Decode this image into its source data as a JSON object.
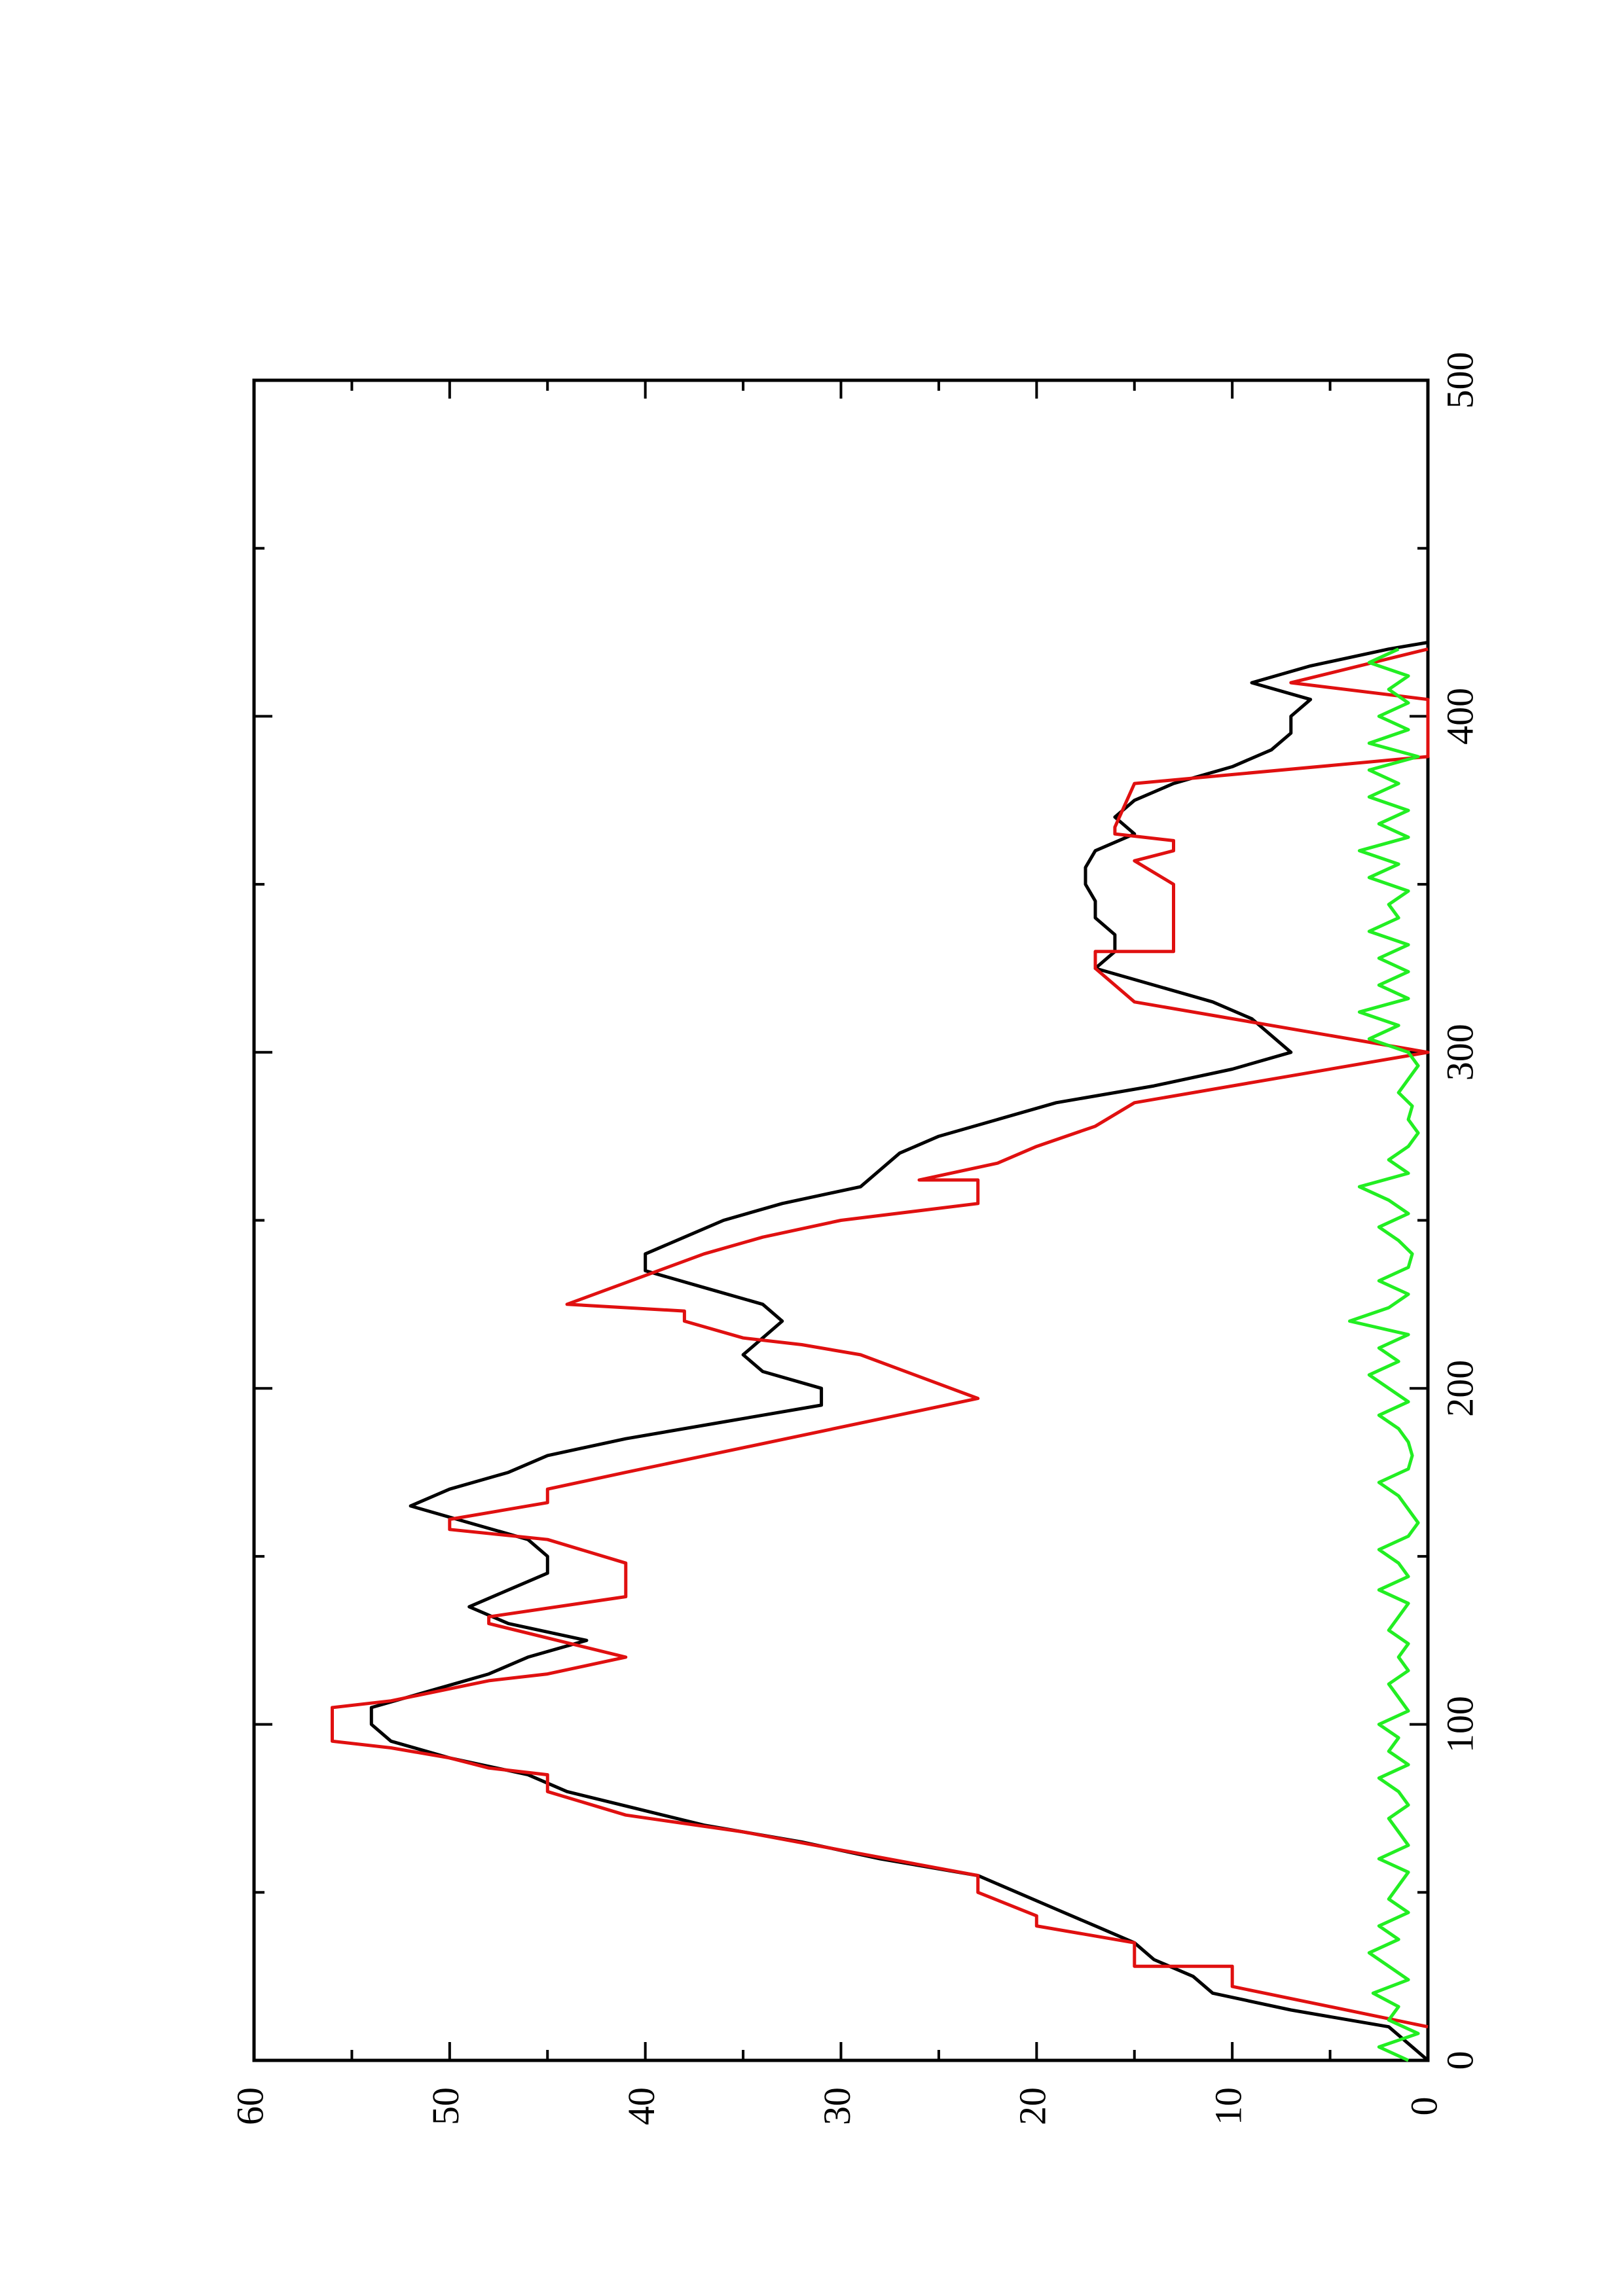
{
  "chart_data": {
    "type": "line",
    "xlim": [
      0,
      500
    ],
    "xticks": [
      0,
      100,
      200,
      300,
      400,
      500
    ],
    "xminorticks": [
      50,
      150,
      250,
      350,
      450
    ],
    "ylim": [
      0,
      60
    ],
    "yticks": [
      0,
      10,
      20,
      30,
      40,
      50,
      60
    ],
    "yminorticks": [
      5,
      15,
      25,
      35,
      45,
      55
    ],
    "rotated": true,
    "series": [
      {
        "color": "#000000",
        "x": [
          0,
          5,
          10,
          15,
          20,
          25,
          30,
          35,
          40,
          45,
          50,
          55,
          60,
          65,
          70,
          75,
          80,
          85,
          90,
          95,
          100,
          105,
          110,
          115,
          120,
          125,
          130,
          135,
          140,
          145,
          150,
          155,
          160,
          165,
          170,
          175,
          180,
          185,
          190,
          195,
          200,
          205,
          210,
          215,
          220,
          225,
          230,
          235,
          240,
          245,
          250,
          255,
          260,
          265,
          270,
          275,
          280,
          285,
          290,
          295,
          300,
          305,
          310,
          315,
          320,
          325,
          330,
          335,
          340,
          345,
          350,
          355,
          360,
          365,
          370,
          375,
          380,
          385,
          390,
          395,
          400,
          405,
          410,
          415,
          420,
          422
        ],
        "values": [
          0,
          1,
          2,
          7,
          11,
          12,
          14,
          15,
          17,
          19,
          21,
          23,
          28,
          32,
          37,
          40.5,
          44,
          46,
          50,
          53,
          54,
          54,
          51,
          48,
          46,
          43,
          47,
          49,
          47,
          45,
          45,
          46,
          49,
          52,
          50,
          47,
          45,
          41,
          36,
          31,
          31,
          34,
          35,
          34,
          33,
          34,
          37,
          40,
          40,
          38,
          36,
          33,
          29,
          28,
          27,
          25,
          22,
          19,
          14,
          10,
          7,
          8,
          9,
          11,
          14,
          17,
          16,
          16,
          17,
          17,
          17.5,
          17.5,
          17,
          15,
          16,
          15,
          13,
          10,
          8,
          7,
          7,
          6,
          9,
          6,
          2,
          0
        ]
      },
      {
        "color": "#e01010",
        "x": [
          10,
          22,
          28,
          28,
          35,
          40,
          43,
          50,
          55,
          68,
          73,
          80,
          85,
          87,
          90,
          93,
          95,
          105,
          107,
          113,
          115,
          120,
          130,
          132,
          138,
          148,
          155,
          158,
          161,
          166,
          170,
          175,
          197,
          210,
          213,
          215,
          220,
          223,
          225,
          240,
          245,
          250,
          255,
          262,
          262,
          267,
          272,
          278,
          285,
          300,
          310,
          315,
          325,
          330,
          330,
          350,
          357,
          360,
          363,
          365,
          367,
          380,
          388,
          405,
          410,
          420
        ],
        "values": [
          0,
          10,
          10,
          15,
          15,
          20,
          20,
          23,
          23,
          35,
          41,
          45,
          45,
          48,
          50,
          53,
          56,
          56,
          53,
          48,
          45,
          41,
          48,
          48,
          41,
          41,
          45,
          50,
          50,
          45,
          45,
          41,
          23,
          29,
          32,
          35,
          38,
          38,
          44,
          37,
          34,
          30,
          23,
          23,
          26,
          22,
          20,
          17,
          15,
          0,
          10,
          15,
          17,
          17,
          13,
          13,
          15,
          13,
          13,
          16,
          16,
          15,
          0,
          0,
          7,
          0
        ]
      },
      {
        "color": "#22ee22",
        "x": [
          0,
          4,
          8,
          12,
          16,
          20,
          24,
          28,
          32,
          36,
          40,
          44,
          48,
          52,
          56,
          60,
          64,
          68,
          72,
          76,
          80,
          84,
          88,
          92,
          96,
          100,
          104,
          108,
          112,
          116,
          120,
          124,
          128,
          132,
          136,
          140,
          144,
          148,
          152,
          156,
          160,
          164,
          168,
          172,
          176,
          180,
          184,
          188,
          192,
          196,
          200,
          204,
          208,
          212,
          216,
          220,
          224,
          228,
          232,
          236,
          240,
          244,
          248,
          252,
          256,
          260,
          264,
          268,
          272,
          276,
          280,
          284,
          288,
          292,
          296,
          300,
          304,
          308,
          312,
          316,
          320,
          324,
          328,
          332,
          336,
          340,
          344,
          348,
          352,
          356,
          360,
          364,
          368,
          372,
          376,
          380,
          384,
          388,
          392,
          396,
          400,
          404,
          408,
          412,
          416,
          420
        ],
        "values": [
          1,
          2.5,
          0.5,
          2,
          1.5,
          2.8,
          1,
          2,
          3,
          1.5,
          2.5,
          1,
          2,
          1.5,
          1,
          2.5,
          1,
          1.5,
          2,
          1,
          1.5,
          2.5,
          1,
          2,
          1.5,
          2.5,
          1,
          1.5,
          2,
          1,
          1.5,
          1,
          2,
          1.5,
          1,
          2.5,
          1,
          1.5,
          2.5,
          1,
          0.5,
          1,
          1.5,
          2.5,
          1,
          0.8,
          1,
          1.5,
          2.5,
          1,
          2,
          3,
          1.5,
          2.5,
          1,
          4,
          2,
          1,
          2.5,
          1,
          0.8,
          1.5,
          2.5,
          1,
          2,
          3.5,
          1,
          2,
          1,
          0.5,
          1,
          0.8,
          1.5,
          1,
          0.5,
          1,
          3,
          1.5,
          3.5,
          1,
          2.5,
          1,
          2.5,
          1,
          3,
          1.5,
          2,
          1,
          3,
          1.5,
          3.5,
          1,
          2.5,
          1,
          3,
          1.5,
          3,
          0.5,
          3,
          1,
          2.5,
          1,
          2,
          1,
          3,
          1.5
        ]
      }
    ]
  }
}
